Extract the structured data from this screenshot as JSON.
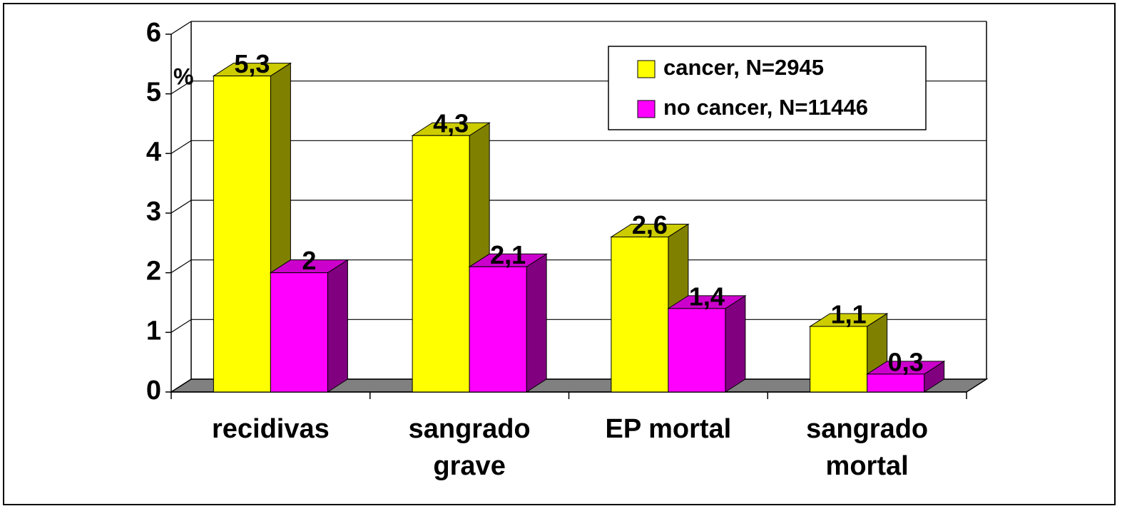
{
  "chart_data": {
    "type": "bar3d",
    "ylabel": "%",
    "categories": [
      "recidivas",
      "sangrado grave",
      "EP mortal",
      "sangrado mortal"
    ],
    "series": [
      {
        "name": "cancer, N=2945",
        "color": "#ffff00",
        "side_color": "#808000",
        "values": [
          5.3,
          4.3,
          2.6,
          1.1
        ],
        "value_labels": [
          "5,3",
          "4,3",
          "2,6",
          "1,1"
        ]
      },
      {
        "name": "no cancer, N=11446",
        "color": "#ff00ff",
        "side_color": "#800080",
        "values": [
          2,
          2.1,
          1.4,
          0.3
        ],
        "value_labels": [
          "2",
          "2,1",
          "1,4",
          "0,3"
        ]
      }
    ],
    "ylim": [
      0,
      6
    ],
    "yticks": [
      0,
      1,
      2,
      3,
      4,
      5,
      6
    ],
    "grid": true,
    "legend": "upper right"
  }
}
